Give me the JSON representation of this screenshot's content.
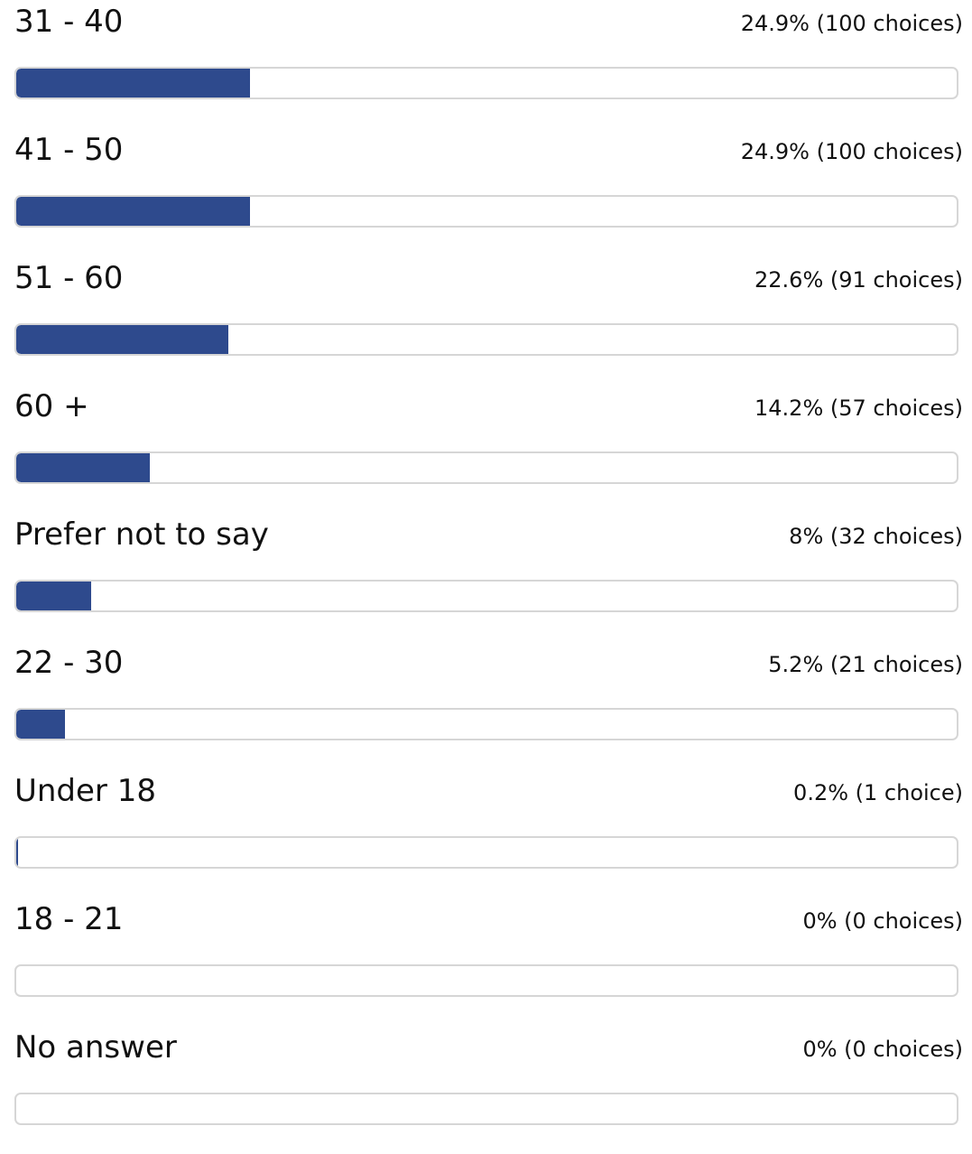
{
  "colors": {
    "bar_fill": "#2e4a8d",
    "track_border": "#d6d6d6",
    "track_background": "#ffffff"
  },
  "chart_data": {
    "type": "bar",
    "title": "",
    "xlabel": "",
    "ylabel": "",
    "ylim": [
      0,
      100
    ],
    "unit": "%",
    "orientation": "horizontal",
    "grid": false,
    "categories": [
      "31 - 40",
      "41 - 50",
      "51 - 60",
      "60 +",
      "Prefer not to say",
      "22 - 30",
      "Under 18",
      "18 - 21",
      "No answer"
    ],
    "values": [
      24.9,
      24.9,
      22.6,
      14.2,
      8,
      5.2,
      0.2,
      0,
      0
    ],
    "labels": [
      "24.9% (100 choices)",
      "24.9% (100 choices)",
      "22.6% (91 choices)",
      "14.2% (57 choices)",
      "8% (32 choices)",
      "5.2% (21 choices)",
      "0.2% (1 choice)",
      "0% (0 choices)",
      "0% (0 choices)"
    ]
  }
}
